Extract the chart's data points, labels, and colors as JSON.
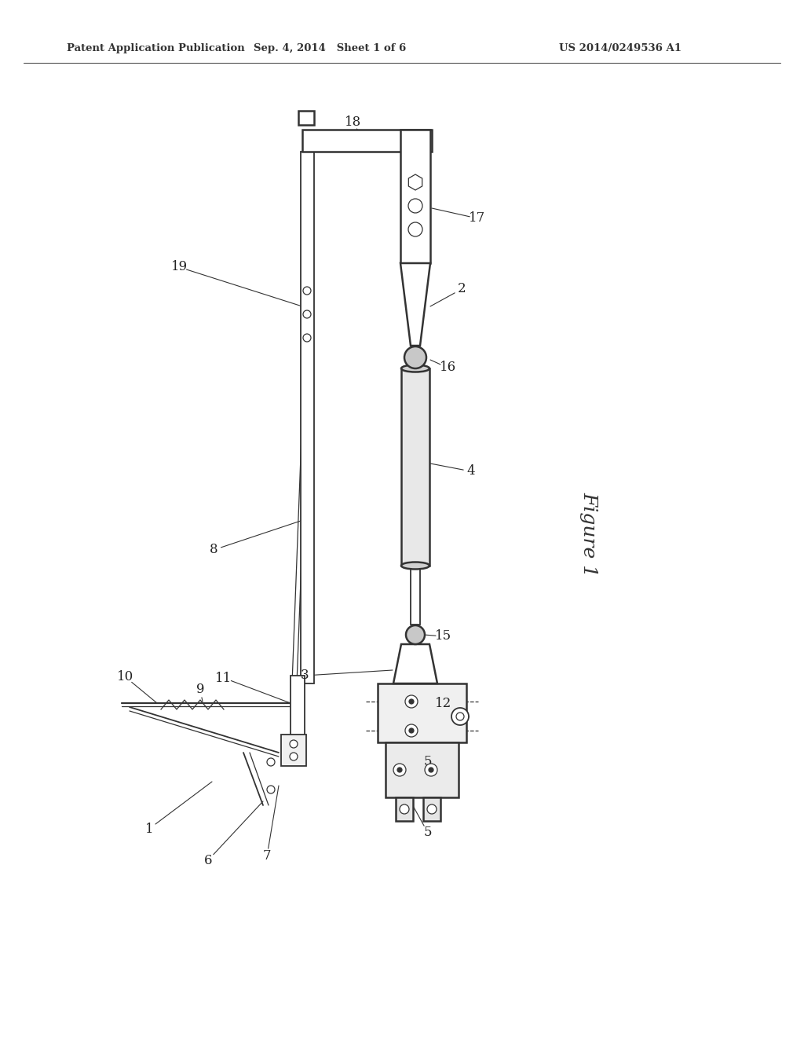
{
  "background_color": "#ffffff",
  "header_left": "Patent Application Publication",
  "header_mid": "Sep. 4, 2014   Sheet 1 of 6",
  "header_right": "US 2014/0249536 A1",
  "figure_label": "Figure 1",
  "line_color": "#333333",
  "label_color": "#222222"
}
